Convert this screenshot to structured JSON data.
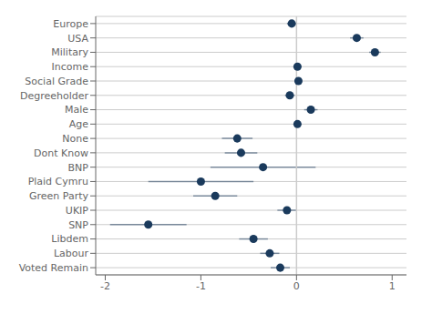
{
  "chart_data": {
    "type": "errorbar",
    "categories": [
      "Voted Remain",
      "Labour",
      "Libdem",
      "SNP",
      "UKIP",
      "Green Party",
      "Plaid Cymru",
      "BNP",
      "Dont Know",
      "None",
      "Age",
      "Male",
      "Degreeholder",
      "Social Grade",
      "Income",
      "Military",
      "USA",
      "Europe"
    ],
    "values": [
      -0.17,
      -0.28,
      -0.45,
      -1.55,
      -0.1,
      -0.85,
      -1.0,
      -0.35,
      -0.58,
      -0.62,
      0.01,
      0.15,
      -0.07,
      0.02,
      0.01,
      0.82,
      0.63,
      -0.05
    ],
    "ci_lower": [
      -0.27,
      -0.38,
      -0.6,
      -1.95,
      -0.2,
      -1.08,
      -1.55,
      -0.9,
      -0.75,
      -0.78,
      -0.005,
      0.08,
      -0.12,
      -0.01,
      -0.005,
      0.76,
      0.56,
      -0.1
    ],
    "ci_upper": [
      -0.07,
      -0.18,
      -0.3,
      -1.15,
      0.0,
      -0.62,
      -0.45,
      0.2,
      -0.41,
      -0.46,
      0.025,
      0.22,
      -0.02,
      0.05,
      0.025,
      0.88,
      0.7,
      0.0
    ],
    "color": "#1a3a5c",
    "xlim": [
      -2.1,
      1.15
    ],
    "xticks": [
      -2,
      -1,
      0,
      1
    ],
    "grid": true
  }
}
